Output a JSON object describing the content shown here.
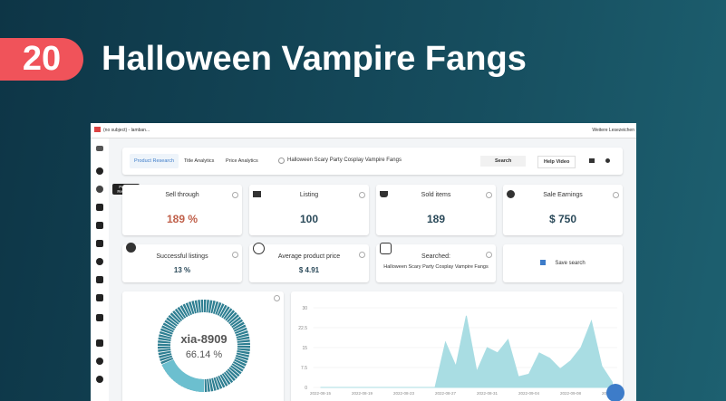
{
  "banner": {
    "number": "20",
    "title": "Halloween Vampire Fangs"
  },
  "browser": {
    "tab": "(no subject) - lamban...",
    "bookmarks": "Weitere Lesezeichen"
  },
  "nav": {
    "tabs": [
      "Product Research",
      "Title Analytics",
      "Price Analytics"
    ],
    "search": "Halloween Scary Party Cosplay Vampire Fangs",
    "search_button": "Search",
    "help": "Help Video"
  },
  "tooltip": "Product Research",
  "cards": [
    {
      "label": "Sell through",
      "value": "189 %"
    },
    {
      "label": "Listing",
      "value": "100"
    },
    {
      "label": "Sold items",
      "value": "189"
    },
    {
      "label": "Sale Earnings",
      "value": "$ 750"
    },
    {
      "label": "Successful listings",
      "value": "13 %"
    },
    {
      "label": "Average product price",
      "value": "$ 4.91"
    },
    {
      "label": "Searched:",
      "value": "Halloween Scary Party Cosplay Vampire Fangs"
    },
    {
      "label": "Save search"
    }
  ],
  "donut": {
    "name": "xia-8909",
    "percent": "66.14 %"
  },
  "chart_data": {
    "type": "area",
    "categories": [
      "2022-08-15",
      null,
      null,
      null,
      "2022-08-19",
      null,
      null,
      null,
      "2022-08-23",
      null,
      null,
      null,
      "2022-08-27",
      null,
      null,
      null,
      "2022-08-31",
      null,
      null,
      null,
      "2022-09-04",
      null,
      null,
      null,
      "2022-09-08",
      null,
      null,
      null,
      "2022-09-12"
    ],
    "values": [
      0,
      0,
      0,
      0,
      0,
      0,
      0,
      0,
      0,
      0,
      0,
      0,
      17,
      8,
      27,
      6,
      15,
      13,
      18,
      4,
      5,
      13,
      11,
      7,
      10,
      15,
      25,
      8,
      2
    ],
    "ylim": [
      0,
      30
    ],
    "yticks": [
      0,
      7.5,
      15,
      22.5,
      30
    ],
    "grid": true,
    "color": "#a9dde3"
  }
}
